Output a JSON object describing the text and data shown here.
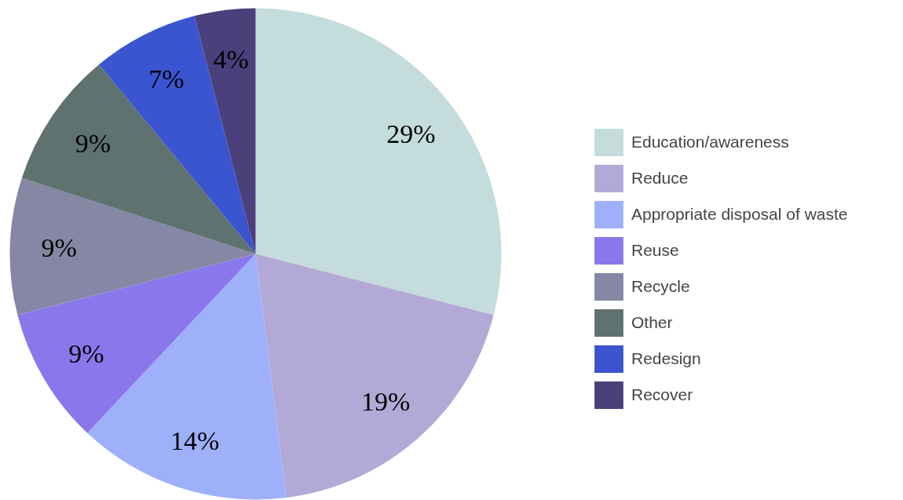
{
  "chart_data": {
    "type": "pie",
    "categories": [
      "Education/awareness",
      "Reduce",
      "Appropriate disposal of waste",
      "Reuse",
      "Recycle",
      "Other",
      "Redesign",
      "Recover"
    ],
    "values": [
      29,
      19,
      14,
      9,
      9,
      9,
      7,
      4
    ],
    "colors": [
      "#c4dcdc",
      "#b3a9d6",
      "#9fb0fb",
      "#8b77ec",
      "#8687a4",
      "#5e7270",
      "#3b54cf",
      "#4b3f7c"
    ],
    "value_labels": [
      "29%",
      "19%",
      "14%",
      "9%",
      "9%",
      "9%",
      "7%",
      "4%"
    ],
    "legend": "right"
  }
}
